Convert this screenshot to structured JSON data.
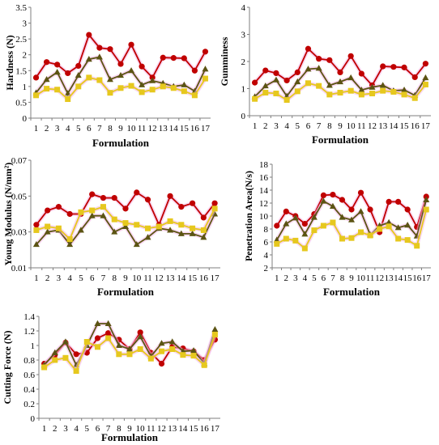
{
  "colors": {
    "red": "#c00000",
    "olive": "#5b5413",
    "yellow": "#e6c81e",
    "pink": "#f4b6e6"
  },
  "chart_data": [
    {
      "type": "line",
      "ylabel": "Hardness (N)",
      "xlabel": "Formulation",
      "categories": [
        "1",
        "2",
        "3",
        "4",
        "5",
        "6",
        "7",
        "8",
        "9",
        "10",
        "11",
        "12",
        "13",
        "14",
        "15",
        "16",
        "17"
      ],
      "yticks": [
        "0",
        "0.5",
        "1",
        "1.5",
        "2",
        "2.5",
        "3",
        "3.5"
      ],
      "ylim": [
        0,
        3.5
      ],
      "series": [
        {
          "color": "red",
          "marker": "circle",
          "values": [
            1.28,
            1.77,
            1.69,
            1.42,
            1.65,
            2.63,
            2.22,
            2.18,
            1.71,
            2.32,
            1.63,
            1.28,
            1.91,
            1.9,
            1.89,
            1.5,
            2.1
          ]
        },
        {
          "color": "olive",
          "marker": "triangle",
          "values": [
            0.8,
            1.22,
            1.45,
            0.78,
            1.35,
            1.86,
            1.93,
            1.22,
            1.35,
            1.5,
            1.05,
            1.18,
            1.1,
            1.0,
            1.05,
            0.85,
            1.55
          ]
        },
        {
          "color": "yellow",
          "marker": "square",
          "values": [
            0.72,
            0.93,
            0.9,
            0.6,
            1.0,
            1.28,
            1.2,
            0.8,
            0.95,
            1.02,
            0.82,
            0.9,
            1.0,
            0.95,
            0.85,
            0.72,
            1.25
          ]
        }
      ]
    },
    {
      "type": "line",
      "ylabel": "Gumminess",
      "xlabel": "Formulation",
      "categories": [
        "1",
        "2",
        "3",
        "4",
        "5",
        "6",
        "7",
        "8",
        "9",
        "10",
        "11",
        "12",
        "13",
        "14",
        "15",
        "16",
        "17"
      ],
      "yticks": [
        "0",
        "1",
        "2",
        "3",
        "4"
      ],
      "ylim": [
        0,
        4
      ],
      "series": [
        {
          "color": "red",
          "marker": "circle",
          "values": [
            1.22,
            1.67,
            1.57,
            1.3,
            1.6,
            2.47,
            2.1,
            2.05,
            1.6,
            2.2,
            1.55,
            1.12,
            1.82,
            1.8,
            1.78,
            1.42,
            1.92
          ]
        },
        {
          "color": "olive",
          "marker": "triangle",
          "values": [
            0.7,
            1.1,
            1.32,
            0.72,
            1.25,
            1.72,
            1.75,
            1.12,
            1.25,
            1.4,
            0.95,
            1.05,
            1.12,
            0.92,
            0.95,
            0.75,
            1.4
          ]
        },
        {
          "color": "yellow",
          "marker": "square",
          "values": [
            0.62,
            0.85,
            0.82,
            0.58,
            0.9,
            1.2,
            1.1,
            0.78,
            0.85,
            0.92,
            0.78,
            0.82,
            0.92,
            0.88,
            0.78,
            0.65,
            1.15
          ]
        }
      ]
    },
    {
      "type": "line",
      "ylabel": "Young Modulus (N/mm²)",
      "xlabel": "Formulation",
      "categories": [
        "1",
        "2",
        "3",
        "4",
        "5",
        "6",
        "7",
        "8",
        "9",
        "10",
        "11",
        "12",
        "13",
        "14",
        "15",
        "16",
        "17"
      ],
      "yticks": [
        "0.01",
        "0.03",
        "0.05",
        "0.07"
      ],
      "ylim": [
        0.01,
        0.07
      ],
      "series": [
        {
          "color": "red",
          "marker": "circle",
          "values": [
            0.034,
            0.042,
            0.044,
            0.04,
            0.04,
            0.051,
            0.049,
            0.049,
            0.043,
            0.052,
            0.048,
            0.034,
            0.05,
            0.044,
            0.046,
            0.038,
            0.046
          ]
        },
        {
          "color": "olive",
          "marker": "triangle",
          "values": [
            0.023,
            0.03,
            0.031,
            0.023,
            0.031,
            0.039,
            0.039,
            0.03,
            0.033,
            0.023,
            0.027,
            0.032,
            0.031,
            0.029,
            0.029,
            0.027,
            0.04
          ]
        },
        {
          "color": "yellow",
          "marker": "square",
          "values": [
            0.031,
            0.033,
            0.032,
            0.026,
            0.041,
            0.042,
            0.044,
            0.037,
            0.035,
            0.034,
            0.032,
            0.033,
            0.036,
            0.034,
            0.032,
            0.031,
            0.043
          ]
        }
      ]
    },
    {
      "type": "line",
      "ylabel": "Penetration Area(N/s)",
      "xlabel": "Formulation",
      "categories": [
        "1",
        "2",
        "3",
        "4",
        "5",
        "6",
        "7",
        "8",
        "9",
        "10",
        "11",
        "12",
        "13",
        "14",
        "15",
        "16",
        "17"
      ],
      "yticks": [
        "2",
        "4",
        "6",
        "8",
        "10",
        "12",
        "14",
        "16",
        "18"
      ],
      "ylim": [
        2,
        18
      ],
      "series": [
        {
          "color": "red",
          "marker": "circle",
          "values": [
            8.5,
            10.7,
            10.0,
            8.8,
            10.3,
            13.2,
            13.3,
            12.5,
            11.0,
            13.6,
            11.0,
            7.5,
            12.2,
            12.2,
            11.0,
            8.3,
            13.0
          ]
        },
        {
          "color": "olive",
          "marker": "triangle",
          "values": [
            6.3,
            8.8,
            9.7,
            7.2,
            9.8,
            12.3,
            11.5,
            9.8,
            9.4,
            10.7,
            7.1,
            8.5,
            9.0,
            8.2,
            8.6,
            6.9,
            12.5
          ]
        },
        {
          "color": "yellow",
          "marker": "square",
          "values": [
            5.7,
            6.5,
            6.2,
            5.0,
            7.8,
            8.5,
            9.0,
            6.5,
            6.6,
            7.5,
            7.0,
            8.0,
            8.4,
            6.5,
            6.3,
            5.4,
            11.0
          ]
        }
      ]
    },
    {
      "type": "line",
      "ylabel": "Cutting Force (N)",
      "xlabel": "Formulation",
      "categories": [
        "1",
        "2",
        "3",
        "4",
        "5",
        "6",
        "7",
        "8",
        "9",
        "10",
        "11",
        "12",
        "13",
        "14",
        "15",
        "16",
        "17"
      ],
      "yticks": [
        "0",
        "0.2",
        "0.4",
        "0.6",
        "0.8",
        "1",
        "1.2",
        "1.4"
      ],
      "ylim": [
        0,
        1.4
      ],
      "series": [
        {
          "color": "red",
          "marker": "circle",
          "values": [
            0.75,
            0.87,
            1.04,
            0.88,
            0.9,
            1.1,
            1.17,
            1.08,
            0.95,
            1.18,
            0.9,
            0.75,
            0.98,
            0.96,
            0.92,
            0.8,
            1.08
          ]
        },
        {
          "color": "olive",
          "marker": "triangle",
          "values": [
            0.73,
            0.9,
            1.05,
            0.73,
            1.0,
            1.3,
            1.3,
            1.0,
            0.95,
            1.12,
            0.85,
            1.03,
            1.05,
            0.92,
            0.93,
            0.75,
            1.22
          ]
        },
        {
          "color": "yellow",
          "marker": "square",
          "values": [
            0.7,
            0.8,
            0.83,
            0.65,
            1.05,
            0.98,
            1.1,
            0.88,
            0.88,
            0.95,
            0.82,
            0.92,
            0.95,
            0.87,
            0.86,
            0.73,
            1.15
          ]
        }
      ]
    }
  ]
}
